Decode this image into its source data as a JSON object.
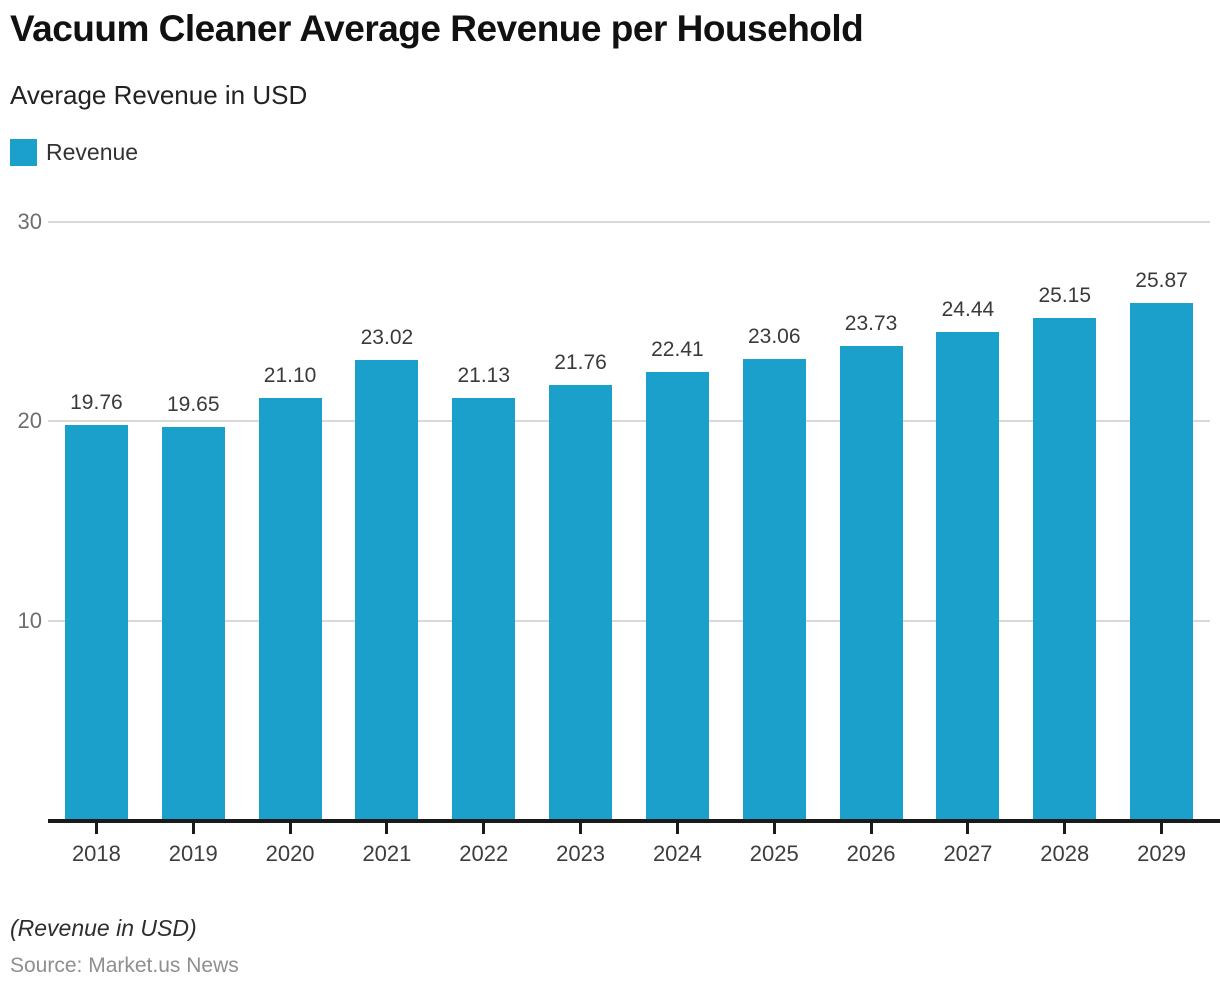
{
  "header": {
    "title": "Vacuum Cleaner Average Revenue per Household",
    "subtitle": "Average Revenue in USD"
  },
  "legend": {
    "label": "Revenue"
  },
  "chart_data": {
    "type": "bar",
    "title": "Vacuum Cleaner Average Revenue per Household",
    "subtitle": "Average Revenue in USD",
    "categories": [
      "2018",
      "2019",
      "2020",
      "2021",
      "2022",
      "2023",
      "2024",
      "2025",
      "2026",
      "2027",
      "2028",
      "2029"
    ],
    "series": [
      {
        "name": "Revenue",
        "values": [
          19.76,
          19.65,
          21.1,
          23.02,
          21.13,
          21.76,
          22.41,
          23.06,
          23.73,
          24.44,
          25.15,
          25.87
        ]
      }
    ],
    "value_labels": [
      "19.76",
      "19.65",
      "21.10",
      "23.02",
      "21.13",
      "21.76",
      "22.41",
      "23.06",
      "23.73",
      "24.44",
      "25.15",
      "25.87"
    ],
    "xlabel": "",
    "ylabel": "Average Revenue in USD",
    "ylim": [
      0,
      30
    ],
    "yticks": [
      10,
      20,
      30
    ],
    "grid": true,
    "legend_position": "top-left",
    "bar_color": "#1ba0cb"
  },
  "colors": {
    "accent": "#1ba0cb",
    "grid": "#d9d9d9",
    "axis": "#1a1a1a",
    "tick_label": "#3d3d3d",
    "y_label": "#6e6e6e",
    "value_label": "#3a3a3a"
  },
  "footer": {
    "note": "(Revenue in USD)",
    "source": "Source: Market.us News"
  }
}
